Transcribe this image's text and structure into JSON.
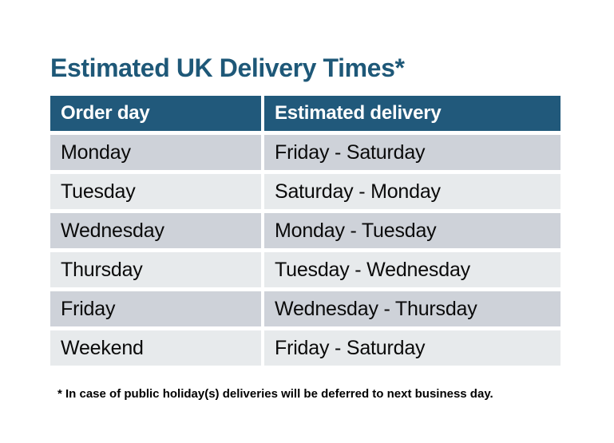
{
  "page": {
    "title": "Estimated UK Delivery Times*",
    "footnote": "* In case of public holiday(s) deliveries will be deferred to next business day."
  },
  "table": {
    "columns": [
      "Order day",
      "Estimated delivery"
    ],
    "rows": [
      {
        "order_day": "Monday",
        "estimated_delivery": "Friday - Saturday"
      },
      {
        "order_day": "Tuesday",
        "estimated_delivery": "Saturday - Monday"
      },
      {
        "order_day": "Wednesday",
        "estimated_delivery": "Monday - Tuesday"
      },
      {
        "order_day": "Thursday",
        "estimated_delivery": "Tuesday - Wednesday"
      },
      {
        "order_day": "Friday",
        "estimated_delivery": "Wednesday - Thursday"
      },
      {
        "order_day": "Weekend",
        "estimated_delivery": "Friday - Saturday"
      }
    ]
  },
  "colors": {
    "background": "#FFFFFF",
    "title_text": "#1E5878",
    "header_bg": "#21597B",
    "header_text": "#FFFFFF",
    "row_dark": "#CED2D9",
    "row_light": "#E7EAEC",
    "body_text": "#0A0A0A",
    "footnote_text": "#000000"
  }
}
